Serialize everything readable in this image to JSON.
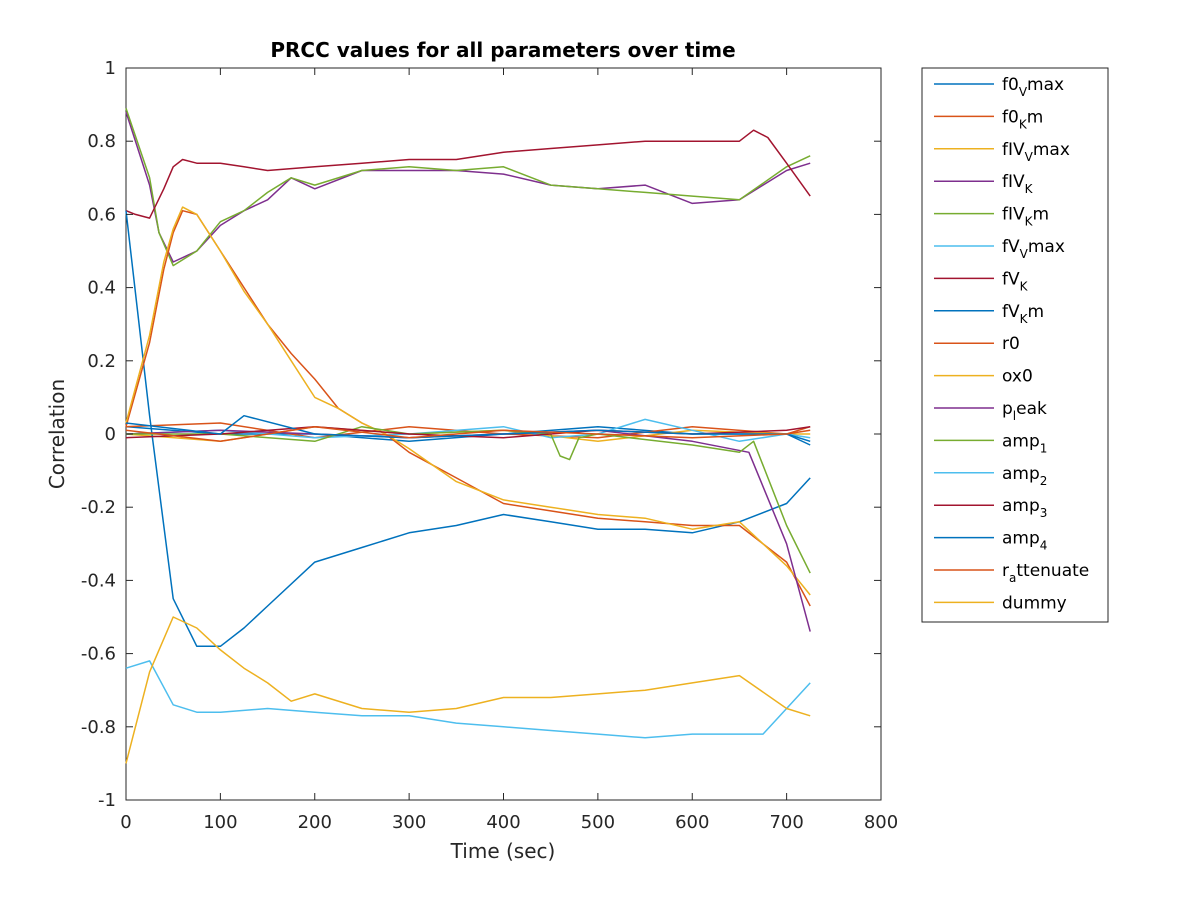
{
  "chart_data": {
    "type": "line",
    "title": "PRCC values for all parameters over time",
    "xlabel": "Time (sec)",
    "ylabel": "Correlation",
    "xlim": [
      0,
      800
    ],
    "ylim": [
      -1,
      1
    ],
    "xticks": [
      0,
      100,
      200,
      300,
      400,
      500,
      600,
      700,
      800
    ],
    "yticks": [
      -1,
      -0.8,
      -0.6,
      -0.4,
      -0.2,
      0,
      0.2,
      0.4,
      0.6,
      0.8,
      1
    ],
    "grid": false,
    "legend_position": "outside-right",
    "series": [
      {
        "name": "f0_V max",
        "legend": {
          "base": "f0",
          "sub": "V",
          "suffix": "max"
        },
        "color": "#0072BD",
        "x": [
          0,
          100,
          200,
          300,
          400,
          500,
          600,
          700,
          725
        ],
        "y": [
          0.02,
          0.0,
          0.0,
          -0.02,
          0.0,
          0.02,
          0.0,
          0.0,
          -0.03
        ]
      },
      {
        "name": "f0_K m",
        "legend": {
          "base": "f0",
          "sub": "K",
          "suffix": "m"
        },
        "color": "#D95319",
        "x": [
          0,
          100,
          200,
          300,
          400,
          500,
          600,
          700,
          725
        ],
        "y": [
          0.02,
          0.03,
          -0.01,
          0.02,
          0.0,
          -0.01,
          0.02,
          0.0,
          0.02
        ]
      },
      {
        "name": "fIV_V max",
        "legend": {
          "base": "fIV",
          "sub": "V",
          "suffix": "max"
        },
        "color": "#EDB120",
        "x": [
          0,
          100,
          200,
          300,
          400,
          500,
          600,
          700,
          725
        ],
        "y": [
          0.0,
          -0.02,
          0.02,
          0.0,
          0.01,
          -0.02,
          0.01,
          0.0,
          0.0
        ]
      },
      {
        "name": "fIV_K",
        "legend": {
          "base": "fIV",
          "sub": "K",
          "suffix": ""
        },
        "color": "#7E2F8E",
        "x": [
          0,
          25,
          35,
          50,
          75,
          100,
          125,
          150,
          175,
          200,
          250,
          300,
          350,
          400,
          450,
          500,
          550,
          600,
          650,
          700,
          725
        ],
        "y": [
          0.88,
          0.68,
          0.55,
          0.47,
          0.5,
          0.57,
          0.61,
          0.64,
          0.7,
          0.67,
          0.72,
          0.72,
          0.72,
          0.71,
          0.68,
          0.67,
          0.68,
          0.63,
          0.64,
          0.72,
          0.74
        ]
      },
      {
        "name": "fIV_K m",
        "legend": {
          "base": "fIV",
          "sub": "K",
          "suffix": "m"
        },
        "color": "#77AC30",
        "x": [
          0,
          25,
          35,
          50,
          75,
          100,
          125,
          150,
          175,
          200,
          250,
          300,
          350,
          400,
          450,
          500,
          550,
          600,
          650,
          700,
          725
        ],
        "y": [
          0.89,
          0.7,
          0.55,
          0.46,
          0.5,
          0.58,
          0.61,
          0.66,
          0.7,
          0.68,
          0.72,
          0.73,
          0.72,
          0.73,
          0.68,
          0.67,
          0.66,
          0.65,
          0.64,
          0.73,
          0.76
        ]
      },
      {
        "name": "fV_V max",
        "legend": {
          "base": "fV",
          "sub": "V",
          "suffix": "max"
        },
        "color": "#4DBEEE",
        "x": [
          0,
          100,
          200,
          300,
          400,
          450,
          500,
          550,
          600,
          650,
          700,
          725
        ],
        "y": [
          0.0,
          0.01,
          -0.01,
          0.0,
          0.02,
          -0.01,
          0.0,
          0.04,
          0.01,
          -0.02,
          0.0,
          -0.01
        ]
      },
      {
        "name": "fV_K",
        "legend": {
          "base": "fV",
          "sub": "K",
          "suffix": ""
        },
        "color": "#A2142F",
        "x": [
          0,
          10,
          25,
          40,
          50,
          60,
          75,
          100,
          125,
          150,
          200,
          250,
          300,
          350,
          400,
          450,
          500,
          550,
          600,
          650,
          665,
          680,
          700,
          725
        ],
        "y": [
          0.61,
          0.6,
          0.59,
          0.67,
          0.73,
          0.75,
          0.74,
          0.74,
          0.73,
          0.72,
          0.73,
          0.74,
          0.75,
          0.75,
          0.77,
          0.78,
          0.79,
          0.8,
          0.8,
          0.8,
          0.83,
          0.81,
          0.74,
          0.65
        ]
      },
      {
        "name": "fV_K m",
        "legend": {
          "base": "fV",
          "sub": "K",
          "suffix": "m"
        },
        "color": "#0072BD",
        "x": [
          0,
          25,
          50,
          75,
          100,
          125,
          150,
          200,
          250,
          300,
          350,
          400,
          450,
          500,
          550,
          600,
          650,
          700,
          725
        ],
        "y": [
          0.61,
          0.05,
          -0.45,
          -0.58,
          -0.58,
          -0.53,
          -0.47,
          -0.35,
          -0.31,
          -0.27,
          -0.25,
          -0.22,
          -0.24,
          -0.26,
          -0.26,
          -0.27,
          -0.24,
          -0.19,
          -0.12
        ]
      },
      {
        "name": "r0",
        "legend": {
          "base": "r0",
          "sub": "",
          "suffix": ""
        },
        "color": "#D95319",
        "x": [
          0,
          25,
          40,
          50,
          60,
          75,
          100,
          125,
          150,
          175,
          200,
          225,
          250,
          275,
          300,
          350,
          400,
          450,
          500,
          550,
          600,
          650,
          700,
          725
        ],
        "y": [
          0.02,
          0.25,
          0.45,
          0.55,
          0.61,
          0.6,
          0.5,
          0.4,
          0.3,
          0.22,
          0.15,
          0.07,
          0.03,
          0.0,
          -0.05,
          -0.12,
          -0.19,
          -0.21,
          -0.23,
          -0.24,
          -0.25,
          -0.25,
          -0.35,
          -0.47
        ]
      },
      {
        "name": "ox0",
        "legend": {
          "base": "ox0",
          "sub": "",
          "suffix": ""
        },
        "color": "#EDB120",
        "x": [
          0,
          25,
          40,
          50,
          60,
          75,
          100,
          125,
          150,
          175,
          200,
          225,
          250,
          275,
          300,
          350,
          400,
          450,
          500,
          550,
          600,
          650,
          700,
          725
        ],
        "y": [
          0.03,
          0.27,
          0.47,
          0.56,
          0.62,
          0.6,
          0.5,
          0.39,
          0.3,
          0.2,
          0.1,
          0.07,
          0.03,
          0.0,
          -0.04,
          -0.13,
          -0.18,
          -0.2,
          -0.22,
          -0.23,
          -0.26,
          -0.24,
          -0.36,
          -0.44
        ]
      },
      {
        "name": "p_l eak",
        "legend": {
          "base": "p",
          "sub": "l",
          "suffix": "eak"
        },
        "color": "#7E2F8E",
        "x": [
          0,
          100,
          200,
          300,
          400,
          500,
          600,
          660,
          700,
          725
        ],
        "y": [
          0.0,
          0.01,
          0.0,
          -0.01,
          0.0,
          0.01,
          -0.02,
          -0.05,
          -0.3,
          -0.54
        ]
      },
      {
        "name": "amp_1",
        "legend": {
          "base": "amp",
          "sub": "1",
          "suffix": ""
        },
        "color": "#77AC30",
        "x": [
          0,
          100,
          200,
          250,
          300,
          400,
          450,
          460,
          470,
          480,
          500,
          600,
          650,
          665,
          700,
          725
        ],
        "y": [
          0.0,
          0.0,
          -0.02,
          0.02,
          0.0,
          0.01,
          0.0,
          -0.06,
          -0.07,
          -0.01,
          0.0,
          -0.03,
          -0.05,
          -0.02,
          -0.25,
          -0.38
        ]
      },
      {
        "name": "amp_2",
        "legend": {
          "base": "amp",
          "sub": "2",
          "suffix": ""
        },
        "color": "#4DBEEE",
        "x": [
          0,
          25,
          50,
          75,
          100,
          150,
          200,
          250,
          300,
          350,
          400,
          450,
          500,
          550,
          600,
          650,
          675,
          700,
          725
        ],
        "y": [
          -0.64,
          -0.62,
          -0.74,
          -0.76,
          -0.76,
          -0.75,
          -0.76,
          -0.77,
          -0.77,
          -0.79,
          -0.8,
          -0.81,
          -0.82,
          -0.83,
          -0.82,
          -0.82,
          -0.82,
          -0.75,
          -0.68
        ]
      },
      {
        "name": "amp_3",
        "legend": {
          "base": "amp",
          "sub": "3",
          "suffix": ""
        },
        "color": "#A2142F",
        "x": [
          0,
          100,
          200,
          300,
          400,
          500,
          600,
          700,
          725
        ],
        "y": [
          -0.01,
          0.0,
          0.02,
          0.0,
          -0.01,
          0.01,
          0.0,
          0.01,
          0.02
        ]
      },
      {
        "name": "amp_4",
        "legend": {
          "base": "amp",
          "sub": "4",
          "suffix": ""
        },
        "color": "#0072BD",
        "x": [
          0,
          100,
          125,
          200,
          300,
          400,
          500,
          600,
          700,
          725
        ],
        "y": [
          0.03,
          0.0,
          0.05,
          0.0,
          -0.01,
          0.0,
          0.01,
          0.0,
          0.0,
          -0.02
        ]
      },
      {
        "name": "r_a ttenuate",
        "legend": {
          "base": "r",
          "sub": "a",
          "suffix": "ttenuate"
        },
        "color": "#D95319",
        "x": [
          0,
          100,
          200,
          300,
          400,
          500,
          600,
          700,
          725
        ],
        "y": [
          0.01,
          -0.02,
          0.02,
          -0.01,
          0.01,
          0.0,
          -0.01,
          0.0,
          0.01
        ]
      },
      {
        "name": "dummy",
        "legend": {
          "base": "dummy",
          "sub": "",
          "suffix": ""
        },
        "color": "#EDB120",
        "x": [
          0,
          25,
          50,
          75,
          100,
          125,
          150,
          175,
          200,
          250,
          300,
          350,
          400,
          450,
          500,
          550,
          600,
          650,
          700,
          725
        ],
        "y": [
          -0.9,
          -0.65,
          -0.5,
          -0.53,
          -0.59,
          -0.64,
          -0.68,
          -0.73,
          -0.71,
          -0.75,
          -0.76,
          -0.75,
          -0.72,
          -0.72,
          -0.71,
          -0.7,
          -0.68,
          -0.66,
          -0.75,
          -0.77
        ]
      }
    ]
  }
}
